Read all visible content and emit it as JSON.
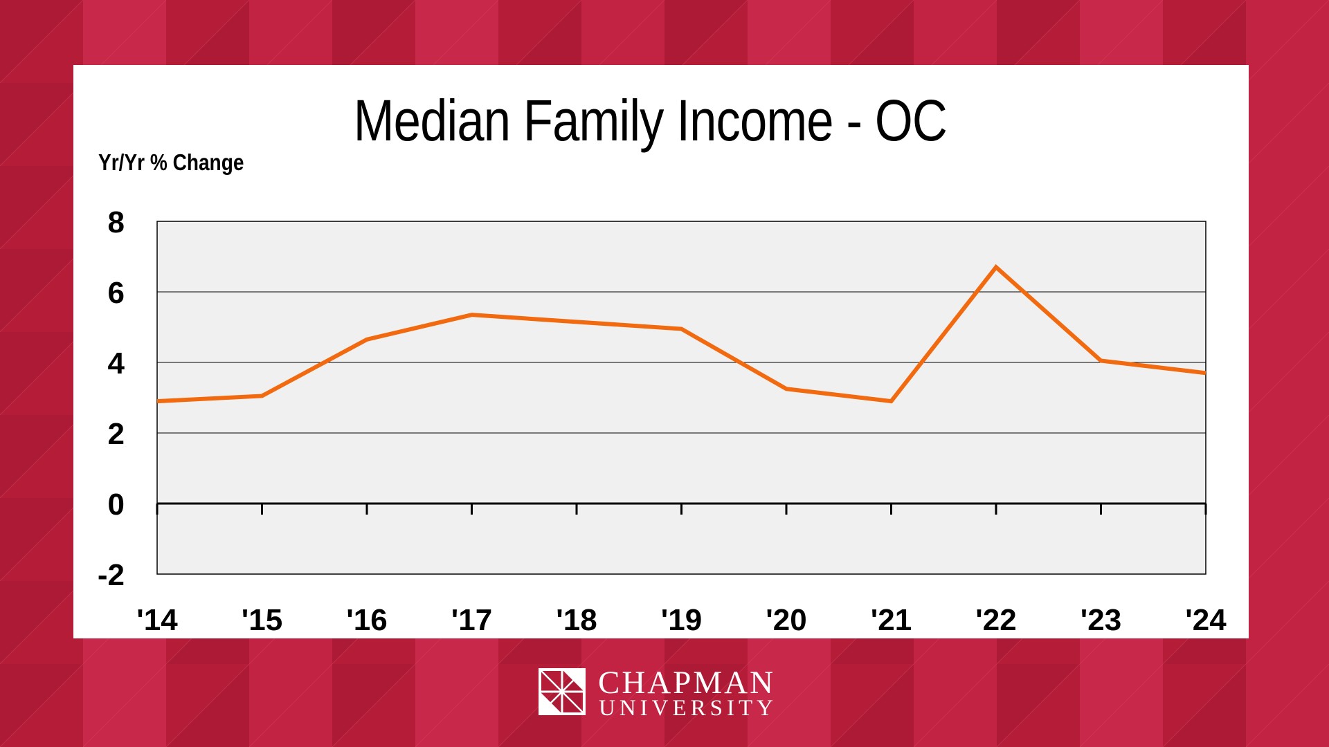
{
  "colors": {
    "background": "#bf1f3d",
    "line": "#f26a10",
    "plot_area": "#f0f0f0"
  },
  "chart_data": {
    "type": "line",
    "title": "Median Family Income - OC",
    "ylabel": "Yr/Yr % Change",
    "xlabel": "",
    "x": [
      "'14",
      "'15",
      "'16",
      "'17",
      "'18",
      "'19",
      "'20",
      "'21",
      "'22",
      "'23",
      "'24"
    ],
    "series": [
      {
        "values": [
          2.9,
          3.05,
          4.65,
          5.35,
          5.15,
          4.95,
          3.25,
          2.9,
          6.7,
          4.05,
          3.7
        ]
      }
    ],
    "ylim": [
      -2,
      8
    ],
    "yticks": [
      8,
      6,
      4,
      2,
      0,
      -2
    ],
    "grid": true,
    "legend": "none"
  },
  "branding": {
    "logo_line1": "CHAPMAN",
    "logo_line2": "UNIVERSITY",
    "logo_icon": "chapman-window-logo"
  }
}
